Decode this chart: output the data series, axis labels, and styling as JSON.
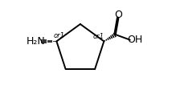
{
  "bg_color": "#ffffff",
  "bond_color": "#000000",
  "text_color": "#000000",
  "figsize": [
    2.14,
    1.22
  ],
  "dpi": 100,
  "label_h2n": "H₂N",
  "label_oh": "OH",
  "label_o": "O",
  "label_or1": "or1"
}
